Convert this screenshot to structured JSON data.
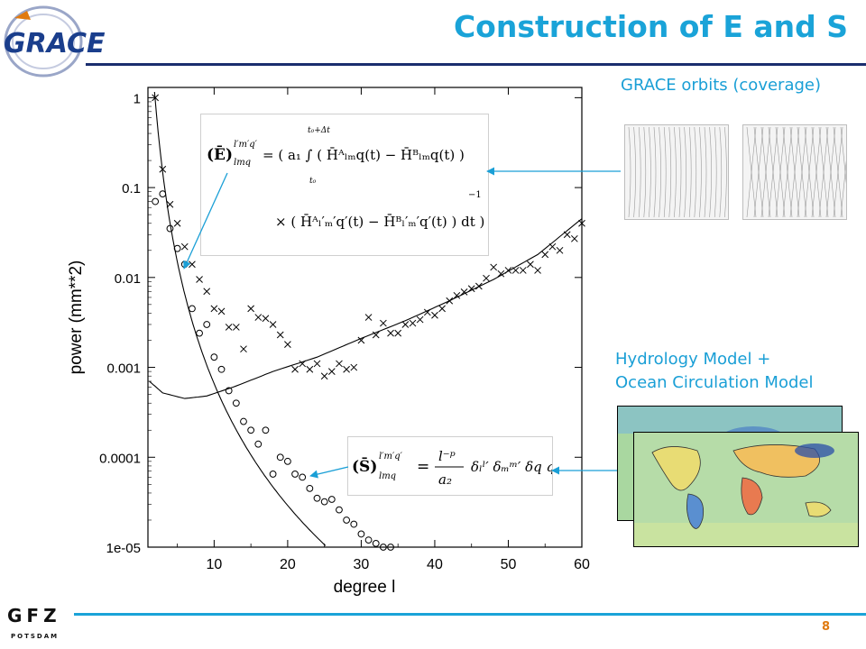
{
  "slide": {
    "title": "Construction of E and S",
    "logo_text": "GRACE",
    "footer_logo_text": "GFZ",
    "footer_logo_subtext": "POTSDAM",
    "page_number": "8"
  },
  "labels": {
    "orbits": "GRACE orbits (coverage)",
    "hydrology_line1": "Hydrology Model +",
    "hydrology_line2": "Ocean Circulation Model"
  },
  "colors": {
    "title": "#1aa3d8",
    "rule_top": "#1a2d6e",
    "rule_bottom": "#1aa3d8",
    "label": "#1a9fd6",
    "page_number": "#e07a10",
    "arrow": "#1a9fd6"
  },
  "chart_data": {
    "type": "scatter",
    "xlabel": "degree l",
    "ylabel": "power (mm**2)",
    "xlim": [
      1,
      60
    ],
    "ylim": [
      1e-05,
      1.3
    ],
    "yscale": "log",
    "xticks": [
      10,
      20,
      30,
      40,
      50,
      60
    ],
    "yticks": [
      1,
      0.1,
      0.01,
      0.001,
      0.0001,
      1e-05
    ],
    "ytick_labels": [
      "1",
      "0.1",
      "0.01",
      "0.001",
      "0.0001",
      "1e-05"
    ],
    "series": [
      {
        "marker": "x",
        "points": [
          [
            2,
            1.0
          ],
          [
            3,
            0.16
          ],
          [
            4,
            0.065
          ],
          [
            5,
            0.04
          ],
          [
            6,
            0.022
          ],
          [
            7,
            0.014
          ],
          [
            8,
            0.0095
          ],
          [
            9,
            0.007
          ],
          [
            10,
            0.0045
          ],
          [
            11,
            0.0042
          ],
          [
            12,
            0.0028
          ],
          [
            13,
            0.0028
          ],
          [
            14,
            0.0016
          ],
          [
            15,
            0.0045
          ],
          [
            16,
            0.0036
          ],
          [
            17,
            0.0035
          ],
          [
            18,
            0.003
          ],
          [
            19,
            0.0023
          ],
          [
            20,
            0.0018
          ],
          [
            21,
            0.00095
          ],
          [
            22,
            0.0011
          ],
          [
            23,
            0.00095
          ],
          [
            24,
            0.0011
          ],
          [
            25,
            0.0008
          ],
          [
            26,
            0.0009
          ],
          [
            27,
            0.0011
          ],
          [
            28,
            0.00095
          ],
          [
            29,
            0.001
          ],
          [
            30,
            0.002
          ],
          [
            31,
            0.0036
          ],
          [
            32,
            0.0023
          ],
          [
            33,
            0.0031
          ],
          [
            34,
            0.0024
          ],
          [
            35,
            0.0024
          ],
          [
            36,
            0.003
          ],
          [
            37,
            0.0031
          ],
          [
            38,
            0.0034
          ],
          [
            39,
            0.0041
          ],
          [
            40,
            0.0038
          ],
          [
            41,
            0.0045
          ],
          [
            42,
            0.0055
          ],
          [
            43,
            0.0063
          ],
          [
            44,
            0.0069
          ],
          [
            45,
            0.0075
          ],
          [
            46,
            0.008
          ],
          [
            47,
            0.0098
          ],
          [
            48,
            0.013
          ],
          [
            49,
            0.011
          ],
          [
            50,
            0.012
          ],
          [
            51,
            0.012
          ],
          [
            52,
            0.012
          ],
          [
            53,
            0.014
          ],
          [
            54,
            0.012
          ],
          [
            55,
            0.018
          ],
          [
            56,
            0.022
          ],
          [
            57,
            0.02
          ],
          [
            58,
            0.03
          ],
          [
            59,
            0.027
          ],
          [
            60,
            0.04
          ]
        ]
      },
      {
        "marker": "o",
        "points": [
          [
            2,
            0.07
          ],
          [
            3,
            0.085
          ],
          [
            4,
            0.035
          ],
          [
            5,
            0.021
          ],
          [
            6,
            0.014
          ],
          [
            7,
            0.0045
          ],
          [
            8,
            0.0024
          ],
          [
            9,
            0.003
          ],
          [
            10,
            0.0013
          ],
          [
            11,
            0.00095
          ],
          [
            12,
            0.00055
          ],
          [
            13,
            0.0004
          ],
          [
            14,
            0.00025
          ],
          [
            15,
            0.0002
          ],
          [
            16,
            0.00014
          ],
          [
            17,
            0.0002
          ],
          [
            18,
            6.5e-05
          ],
          [
            19,
            0.0001
          ],
          [
            20,
            9e-05
          ],
          [
            21,
            6.5e-05
          ],
          [
            22,
            6e-05
          ],
          [
            23,
            4.5e-05
          ],
          [
            24,
            3.5e-05
          ],
          [
            25,
            3.2e-05
          ],
          [
            26,
            3.4e-05
          ],
          [
            27,
            2.6e-05
          ],
          [
            28,
            2e-05
          ],
          [
            29,
            1.8e-05
          ],
          [
            30,
            1.4e-05
          ],
          [
            31,
            1.2e-05
          ],
          [
            32,
            1.1e-05
          ],
          [
            33,
            1e-05
          ],
          [
            34,
            1e-05
          ]
        ]
      }
    ],
    "curves": [
      {
        "name": "decay",
        "formula": "1.3 * l^-4.5",
        "x_range": [
          1.9,
          35
        ]
      },
      {
        "name": "noise",
        "formula": "error degree variance",
        "x_range": [
          1,
          60
        ]
      }
    ]
  },
  "equations": {
    "E": {
      "lhs": "(Ē)",
      "super": "l′m′q′",
      "sub": "lmq",
      "line1": "= ( a₁ ∫ ( H̄ᴬₗₘq(t) − H̄ᴮₗₘq(t) )",
      "int_upper": "t₀+Δt",
      "int_lower": "t₀",
      "exp": "−1",
      "line2": "× ( H̄ᴬₗ′ₘ′q′(t) − H̄ᴮₗ′ₘ′q′(t) ) dt )"
    },
    "S": {
      "lhs": "(S̄)",
      "super": "l′m′q′",
      "sub": "lmq",
      "num": "l⁻ᵖ",
      "den": "a₂",
      "rhs": "δₗˡ′ δₘᵐ′ δq q′"
    }
  }
}
